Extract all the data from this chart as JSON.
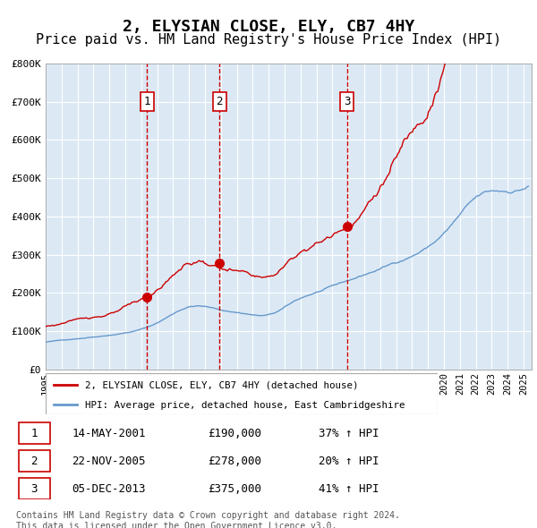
{
  "title": "2, ELYSIAN CLOSE, ELY, CB7 4HY",
  "subtitle": "Price paid vs. HM Land Registry's House Price Index (HPI)",
  "title_fontsize": 13,
  "subtitle_fontsize": 11,
  "background_color": "#ffffff",
  "plot_bg_color": "#dce9f5",
  "grid_color": "#ffffff",
  "xmin": 1995.0,
  "xmax": 2025.5,
  "ymin": 0,
  "ymax": 800000,
  "yticks": [
    0,
    100000,
    200000,
    300000,
    400000,
    500000,
    600000,
    700000,
    800000
  ],
  "ytick_labels": [
    "£0",
    "£100K",
    "£200K",
    "£300K",
    "£400K",
    "£500K",
    "£600K",
    "£700K",
    "£800K"
  ],
  "sale_dates": [
    2001.37,
    2005.9,
    2013.92
  ],
  "sale_prices": [
    190000,
    278000,
    375000
  ],
  "sale_labels": [
    "1",
    "2",
    "3"
  ],
  "red_line_color": "#cc0000",
  "blue_line_color": "#6699cc",
  "sale_dot_color": "#cc0000",
  "dashed_line_color": "#cc0000",
  "legend_label_red": "2, ELYSIAN CLOSE, ELY, CB7 4HY (detached house)",
  "legend_label_blue": "HPI: Average price, detached house, East Cambridgeshire",
  "table_entries": [
    {
      "label": "1",
      "date": "14-MAY-2001",
      "price": "£190,000",
      "hpi": "37% ↑ HPI"
    },
    {
      "label": "2",
      "date": "22-NOV-2005",
      "price": "£278,000",
      "hpi": "20% ↑ HPI"
    },
    {
      "label": "3",
      "date": "05-DEC-2013",
      "price": "£375,000",
      "hpi": "41% ↑ HPI"
    }
  ],
  "footer_text": "Contains HM Land Registry data © Crown copyright and database right 2024.\nThis data is licensed under the Open Government Licence v3.0.",
  "label_box_color": "#ffffff",
  "label_box_edge": "#cc0000"
}
